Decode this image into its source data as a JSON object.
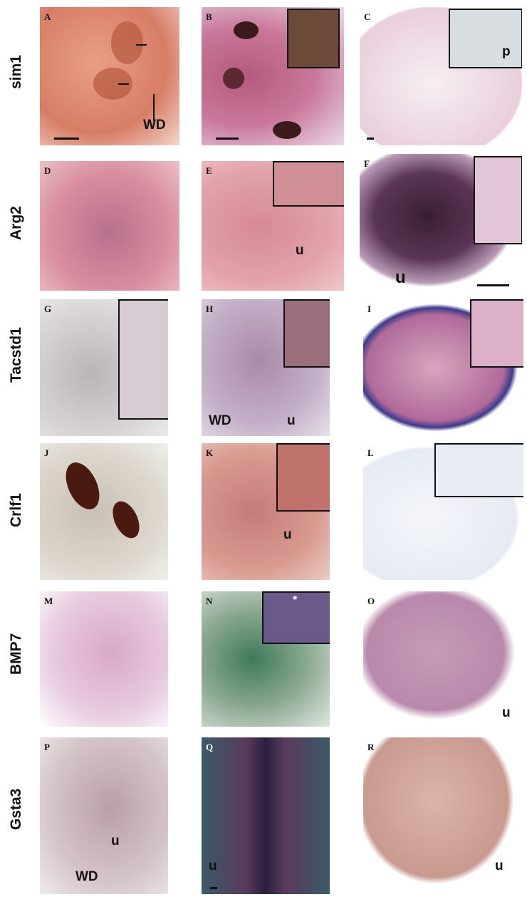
{
  "rows": [
    "sim1",
    "Arg2",
    "Tacstd1",
    "Crlf1",
    "BMP7",
    "Gsta3"
  ],
  "panels": {
    "A": {
      "letter": "A",
      "labels": [
        "WD"
      ]
    },
    "B": {
      "letter": "B"
    },
    "C": {
      "letter": "C",
      "labels": [
        "p"
      ]
    },
    "D": {
      "letter": "D"
    },
    "E": {
      "letter": "E",
      "labels": [
        "u"
      ]
    },
    "F": {
      "letter": "F",
      "labels": [
        "u"
      ]
    },
    "G": {
      "letter": "G"
    },
    "H": {
      "letter": "H",
      "labels": [
        "WD",
        "u"
      ]
    },
    "I": {
      "letter": "I"
    },
    "J": {
      "letter": "J"
    },
    "K": {
      "letter": "K",
      "labels": [
        "u"
      ]
    },
    "L": {
      "letter": "L"
    },
    "M": {
      "letter": "M"
    },
    "N": {
      "letter": "N",
      "labels": [
        "*"
      ]
    },
    "O": {
      "letter": "O",
      "labels": [
        "u"
      ]
    },
    "P": {
      "letter": "P",
      "labels": [
        "u",
        "WD"
      ]
    },
    "Q": {
      "letter": "Q",
      "labels": [
        "u"
      ]
    },
    "R": {
      "letter": "R",
      "labels": [
        "u"
      ]
    }
  },
  "colors": {
    "stain_red": "#c9705a",
    "stain_pink": "#d8a0b0",
    "stain_purple": "#8a5c8f",
    "stain_blue": "#2a3a7a",
    "green": "#2f6b55"
  }
}
